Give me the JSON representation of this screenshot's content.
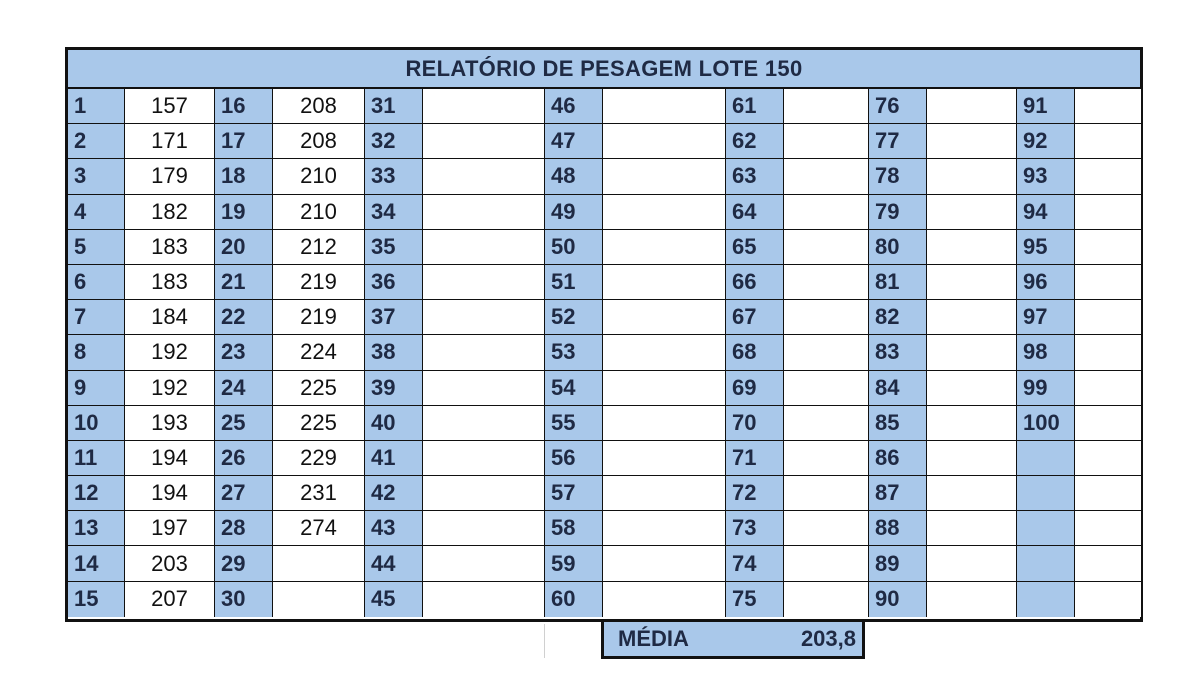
{
  "report": {
    "title": "RELATÓRIO DE PESAGEM LOTE 150",
    "average_label": "MÉDIA",
    "average_value": "203,8"
  },
  "colors": {
    "header_fill": "#a9c8ea",
    "border": "#111111",
    "label_text": "#1f2a44"
  },
  "rows": [
    [
      {
        "n": "1",
        "w": "157"
      },
      {
        "n": "16",
        "w": "208"
      },
      {
        "n": "31",
        "w": ""
      },
      {
        "n": "46",
        "w": ""
      },
      {
        "n": "61",
        "w": ""
      },
      {
        "n": "76",
        "w": ""
      },
      {
        "n": "91",
        "w": ""
      }
    ],
    [
      {
        "n": "2",
        "w": "171"
      },
      {
        "n": "17",
        "w": "208"
      },
      {
        "n": "32",
        "w": ""
      },
      {
        "n": "47",
        "w": ""
      },
      {
        "n": "62",
        "w": ""
      },
      {
        "n": "77",
        "w": ""
      },
      {
        "n": "92",
        "w": ""
      }
    ],
    [
      {
        "n": "3",
        "w": "179"
      },
      {
        "n": "18",
        "w": "210"
      },
      {
        "n": "33",
        "w": ""
      },
      {
        "n": "48",
        "w": ""
      },
      {
        "n": "63",
        "w": ""
      },
      {
        "n": "78",
        "w": ""
      },
      {
        "n": "93",
        "w": ""
      }
    ],
    [
      {
        "n": "4",
        "w": "182"
      },
      {
        "n": "19",
        "w": "210"
      },
      {
        "n": "34",
        "w": ""
      },
      {
        "n": "49",
        "w": ""
      },
      {
        "n": "64",
        "w": ""
      },
      {
        "n": "79",
        "w": ""
      },
      {
        "n": "94",
        "w": ""
      }
    ],
    [
      {
        "n": "5",
        "w": "183"
      },
      {
        "n": "20",
        "w": "212"
      },
      {
        "n": "35",
        "w": ""
      },
      {
        "n": "50",
        "w": ""
      },
      {
        "n": "65",
        "w": ""
      },
      {
        "n": "80",
        "w": ""
      },
      {
        "n": "95",
        "w": ""
      }
    ],
    [
      {
        "n": "6",
        "w": "183"
      },
      {
        "n": "21",
        "w": "219"
      },
      {
        "n": "36",
        "w": ""
      },
      {
        "n": "51",
        "w": ""
      },
      {
        "n": "66",
        "w": ""
      },
      {
        "n": "81",
        "w": ""
      },
      {
        "n": "96",
        "w": ""
      }
    ],
    [
      {
        "n": "7",
        "w": "184"
      },
      {
        "n": "22",
        "w": "219"
      },
      {
        "n": "37",
        "w": ""
      },
      {
        "n": "52",
        "w": ""
      },
      {
        "n": "67",
        "w": ""
      },
      {
        "n": "82",
        "w": ""
      },
      {
        "n": "97",
        "w": ""
      }
    ],
    [
      {
        "n": "8",
        "w": "192"
      },
      {
        "n": "23",
        "w": "224"
      },
      {
        "n": "38",
        "w": ""
      },
      {
        "n": "53",
        "w": ""
      },
      {
        "n": "68",
        "w": ""
      },
      {
        "n": "83",
        "w": ""
      },
      {
        "n": "98",
        "w": ""
      }
    ],
    [
      {
        "n": "9",
        "w": "192"
      },
      {
        "n": "24",
        "w": "225"
      },
      {
        "n": "39",
        "w": ""
      },
      {
        "n": "54",
        "w": ""
      },
      {
        "n": "69",
        "w": ""
      },
      {
        "n": "84",
        "w": ""
      },
      {
        "n": "99",
        "w": ""
      }
    ],
    [
      {
        "n": "10",
        "w": "193"
      },
      {
        "n": "25",
        "w": "225"
      },
      {
        "n": "40",
        "w": ""
      },
      {
        "n": "55",
        "w": ""
      },
      {
        "n": "70",
        "w": ""
      },
      {
        "n": "85",
        "w": ""
      },
      {
        "n": "100",
        "w": ""
      }
    ],
    [
      {
        "n": "11",
        "w": "194"
      },
      {
        "n": "26",
        "w": "229"
      },
      {
        "n": "41",
        "w": ""
      },
      {
        "n": "56",
        "w": ""
      },
      {
        "n": "71",
        "w": ""
      },
      {
        "n": "86",
        "w": ""
      },
      {
        "n": "",
        "w": ""
      }
    ],
    [
      {
        "n": "12",
        "w": "194"
      },
      {
        "n": "27",
        "w": "231"
      },
      {
        "n": "42",
        "w": ""
      },
      {
        "n": "57",
        "w": ""
      },
      {
        "n": "72",
        "w": ""
      },
      {
        "n": "87",
        "w": ""
      },
      {
        "n": "",
        "w": ""
      }
    ],
    [
      {
        "n": "13",
        "w": "197"
      },
      {
        "n": "28",
        "w": "274"
      },
      {
        "n": "43",
        "w": ""
      },
      {
        "n": "58",
        "w": ""
      },
      {
        "n": "73",
        "w": ""
      },
      {
        "n": "88",
        "w": ""
      },
      {
        "n": "",
        "w": ""
      }
    ],
    [
      {
        "n": "14",
        "w": "203"
      },
      {
        "n": "29",
        "w": ""
      },
      {
        "n": "44",
        "w": ""
      },
      {
        "n": "59",
        "w": ""
      },
      {
        "n": "74",
        "w": ""
      },
      {
        "n": "89",
        "w": ""
      },
      {
        "n": "",
        "w": ""
      }
    ],
    [
      {
        "n": "15",
        "w": "207"
      },
      {
        "n": "30",
        "w": ""
      },
      {
        "n": "45",
        "w": ""
      },
      {
        "n": "60",
        "w": ""
      },
      {
        "n": "75",
        "w": ""
      },
      {
        "n": "90",
        "w": ""
      },
      {
        "n": "",
        "w": ""
      }
    ]
  ]
}
